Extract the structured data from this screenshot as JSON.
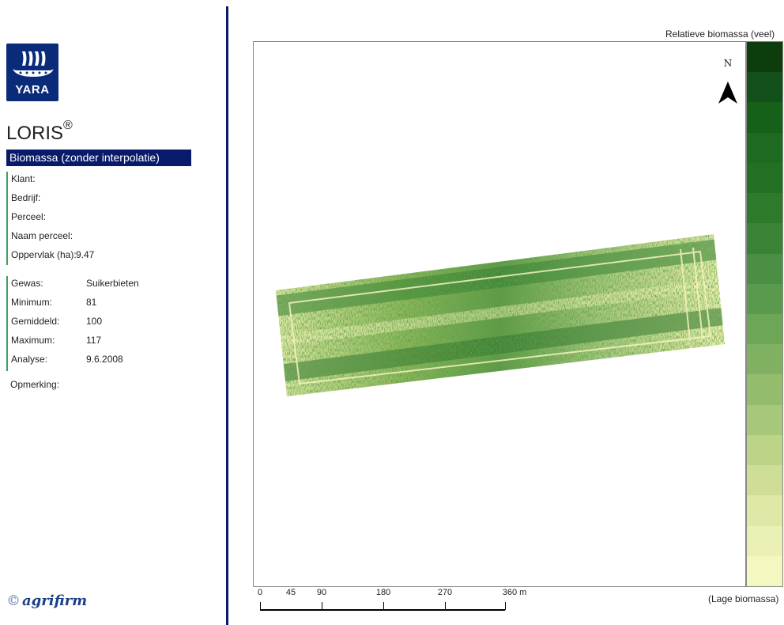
{
  "left_panel": {
    "brand_logo_text": "YARA",
    "product_name": "LORIS",
    "product_mark": "®",
    "map_type": "Biomassa (zonder interpolatie)",
    "details": [
      {
        "label": "Klant:",
        "value": ""
      },
      {
        "label": "Bedrijf:",
        "value": ""
      },
      {
        "label": "Perceel:",
        "value": ""
      },
      {
        "label": "Naam perceel:",
        "value": ""
      },
      {
        "label": "Oppervlak (ha):",
        "value": "9.47"
      }
    ],
    "stats": [
      {
        "label": "Gewas:",
        "value": "Suikerbieten"
      },
      {
        "label": "Minimum:",
        "value": "81"
      },
      {
        "label": "Gemiddeld:",
        "value": "100"
      },
      {
        "label": "Maximum:",
        "value": "117"
      },
      {
        "label": "Analyse:",
        "value": "9.6.2008"
      }
    ],
    "remark_label": "Opmerking:",
    "partner_logo_text": "agrifirm",
    "partner_logo_mark": "©"
  },
  "map": {
    "north_label": "N",
    "field_colors": {
      "low": "#f6f5b4",
      "mid": "#8fb85a",
      "high": "#17591a"
    }
  },
  "legend": {
    "top_label": "Relatieve biomassa (veel)",
    "bottom_label": "(Lage biomassa)",
    "colors": [
      "#0d3d0d",
      "#13501a",
      "#176019",
      "#1d6a20",
      "#236f24",
      "#2d7a2b",
      "#3a8336",
      "#4a8f43",
      "#5a9a4d",
      "#6ea657",
      "#80b062",
      "#94bc6d",
      "#a7c77a",
      "#bbd488",
      "#cfde96",
      "#dfe8a6",
      "#ebf0b4",
      "#f5f7c0"
    ]
  },
  "scale_bar": {
    "ticks": [
      "0",
      "45",
      "90",
      "180",
      "270",
      "360 m"
    ]
  }
}
